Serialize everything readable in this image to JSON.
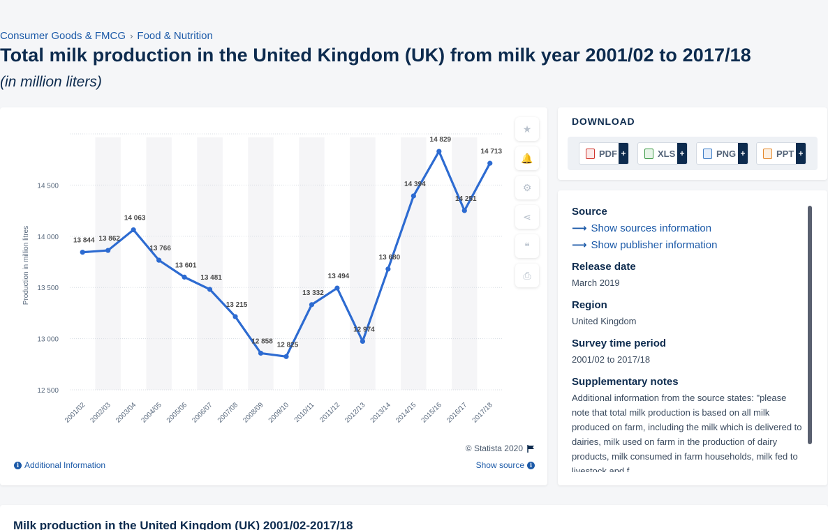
{
  "breadcrumb": {
    "items": [
      "Consumer Goods & FMCG",
      "Food & Nutrition"
    ],
    "separator": "›"
  },
  "page": {
    "title": "Total milk production in the United Kingdom (UK) from milk year 2001/02 to 2017/18",
    "subtitle": "(in million liters)"
  },
  "chart_tools": {
    "icons": [
      "star-icon",
      "bell-icon",
      "gear-icon",
      "share-icon",
      "quote-icon",
      "print-icon"
    ],
    "glyphs": [
      "★",
      "🔔",
      "⚙",
      "⋖",
      "❝",
      "⎙"
    ]
  },
  "chart_footer": {
    "copyright": "© Statista 2020",
    "additional_info": "Additional Information",
    "show_source": "Show source"
  },
  "download": {
    "title": "DOWNLOAD",
    "buttons": [
      {
        "label": "PDF",
        "color": "#d0342c"
      },
      {
        "label": "XLS",
        "color": "#3d9a47"
      },
      {
        "label": "PNG",
        "color": "#3f7fc8"
      },
      {
        "label": "PPT",
        "color": "#e58a2c"
      }
    ],
    "plus": "+"
  },
  "meta": {
    "source_heading": "Source",
    "show_sources": "Show sources information",
    "show_publisher": "Show publisher information",
    "release_heading": "Release date",
    "release_value": "March 2019",
    "region_heading": "Region",
    "region_value": "United Kingdom",
    "survey_heading": "Survey time period",
    "survey_value": "2001/02 to 2017/18",
    "notes_heading": "Supplementary notes",
    "notes_value": "Additional information from the source states: \"please note that total milk production is based on all milk produced on farm, including the milk which is delivered to dairies, milk used on farm in the production of dairy products, milk consumed in farm households, milk fed to livestock and f..."
  },
  "bottom": {
    "title": "Milk production in the United Kingdom (UK) 2001/02-2017/18"
  },
  "colors": {
    "line": "#2d6bd1",
    "stripe": "#f5f5f7",
    "grid": "#d8dde3",
    "label": "#4a4a4a"
  },
  "chart_data": {
    "type": "line",
    "x": [
      "2001/02",
      "2002/03",
      "2003/04",
      "2004/05",
      "2005/06",
      "2006/07",
      "2007/08",
      "2008/09",
      "2009/10",
      "2010/11",
      "2011/12",
      "2012/13",
      "2013/14",
      "2014/15",
      "2015/16",
      "2016/17",
      "2017/18"
    ],
    "values": [
      13844,
      13862,
      14063,
      13766,
      13601,
      13481,
      13215,
      12858,
      12825,
      13332,
      13494,
      12974,
      13680,
      14394,
      14829,
      14251,
      14713
    ],
    "data_labels": [
      "13 844",
      "13 862",
      "14 063",
      "13 766",
      "13 601",
      "13 481",
      "13 215",
      "12 858",
      "12 825",
      "13 332",
      "13 494",
      "12 974",
      "13 680",
      "14 394",
      "14 829",
      "14 251",
      "14 713"
    ],
    "ylabel": "Production in million litres",
    "yticks": [
      12500,
      13000,
      13500,
      14000,
      14500
    ],
    "ytick_labels": [
      "12 500",
      "13 000",
      "13 500",
      "14 000",
      "14 500"
    ],
    "ylim": [
      12500,
      15000
    ],
    "grid": true,
    "legend": "none"
  }
}
